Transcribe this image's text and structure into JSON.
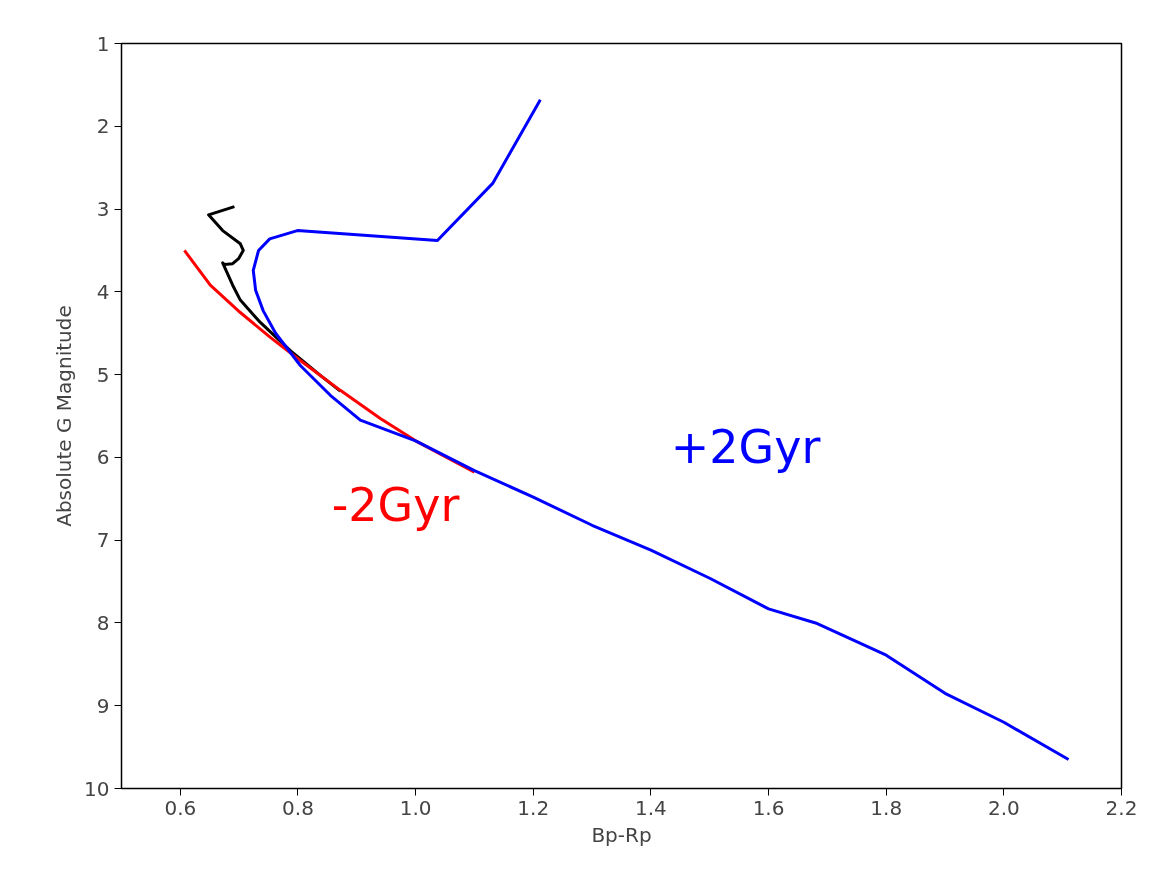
{
  "chart_data": {
    "type": "line",
    "xlabel": "Bp-Rp",
    "ylabel": "Absolute G Magnitude",
    "xlim": [
      0.5,
      2.2
    ],
    "xticks": [
      {
        "value": 0.6,
        "label": "0.6"
      },
      {
        "value": 0.8,
        "label": "0.8"
      },
      {
        "value": 1.0,
        "label": "1.0"
      },
      {
        "value": 1.2,
        "label": "1.2"
      },
      {
        "value": 1.4,
        "label": "1.4"
      },
      {
        "value": 1.6,
        "label": "1.6"
      },
      {
        "value": 1.8,
        "label": "1.8"
      },
      {
        "value": 2.0,
        "label": "2.0"
      },
      {
        "value": 2.2,
        "label": "2.2"
      }
    ],
    "ylim": [
      10,
      1
    ],
    "yticks": [
      1,
      2,
      3,
      4,
      5,
      6,
      7,
      8,
      9,
      10
    ],
    "grid": false,
    "marker": "none",
    "line_style": "solid",
    "series": [
      {
        "color": "#000000",
        "x": [
          0.692,
          0.648,
          0.672,
          0.702,
          0.707,
          0.699,
          0.689,
          0.675,
          0.672,
          0.689,
          0.702,
          0.736,
          0.787,
          0.838,
          0.872
        ],
        "values": [
          2.97,
          3.07,
          3.26,
          3.42,
          3.5,
          3.6,
          3.66,
          3.67,
          3.65,
          3.92,
          4.1,
          4.37,
          4.71,
          5.01,
          5.2
        ]
      },
      {
        "name": "-2Gyr",
        "color": "#ff0000",
        "x": [
          0.607,
          0.651,
          0.702,
          0.753,
          0.804,
          0.872,
          0.94,
          1.0,
          1.1
        ],
        "values": [
          3.5,
          3.92,
          4.25,
          4.55,
          4.83,
          5.19,
          5.53,
          5.8,
          6.18
        ]
      },
      {
        "name": "+2Gyr",
        "color": "#0000ff",
        "x": [
          1.212,
          1.131,
          1.037,
          0.799,
          0.752,
          0.733,
          0.724,
          0.728,
          0.741,
          0.762,
          0.804,
          0.855,
          0.906,
          1.0,
          1.1,
          1.2,
          1.3,
          1.4,
          1.5,
          1.6,
          1.68,
          1.8,
          1.9,
          2.0,
          2.11
        ],
        "values": [
          1.68,
          2.69,
          3.38,
          3.26,
          3.36,
          3.5,
          3.74,
          3.98,
          4.23,
          4.5,
          4.89,
          5.25,
          5.55,
          5.8,
          6.16,
          6.48,
          6.82,
          7.12,
          7.46,
          7.83,
          8.0,
          8.39,
          8.85,
          9.2,
          9.65
        ]
      }
    ]
  }
}
